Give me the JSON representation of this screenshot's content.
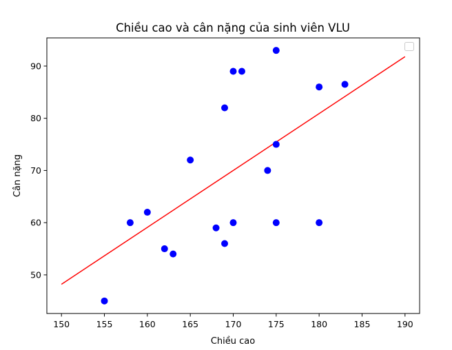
{
  "chart_data": {
    "type": "scatter",
    "title": "Chiều cao và cân nặng của sinh viên VLU",
    "xlabel": "Chiều cao",
    "ylabel": "Cân nặng",
    "xlim": [
      148.3,
      191.7
    ],
    "ylim": [
      42.6,
      95.4
    ],
    "x_ticks": [
      150,
      155,
      160,
      165,
      170,
      175,
      180,
      185,
      190
    ],
    "y_ticks": [
      50,
      60,
      70,
      80,
      90
    ],
    "grid": false,
    "legend": {
      "placement": "top-right",
      "entries": []
    },
    "points": {
      "color": "#0000ff",
      "x": [
        155,
        158,
        160,
        162,
        163,
        165,
        168,
        169,
        169,
        170,
        170,
        171,
        174,
        175,
        175,
        175,
        180,
        180,
        183
      ],
      "y": [
        45,
        60,
        62,
        55,
        54,
        72,
        59,
        56,
        82,
        89,
        60,
        89,
        70,
        93,
        75,
        60,
        86,
        60,
        86.5
      ]
    },
    "regression_line": {
      "color": "#ff0000",
      "x": [
        150,
        190
      ],
      "y": [
        48.2,
        91.8
      ]
    }
  }
}
